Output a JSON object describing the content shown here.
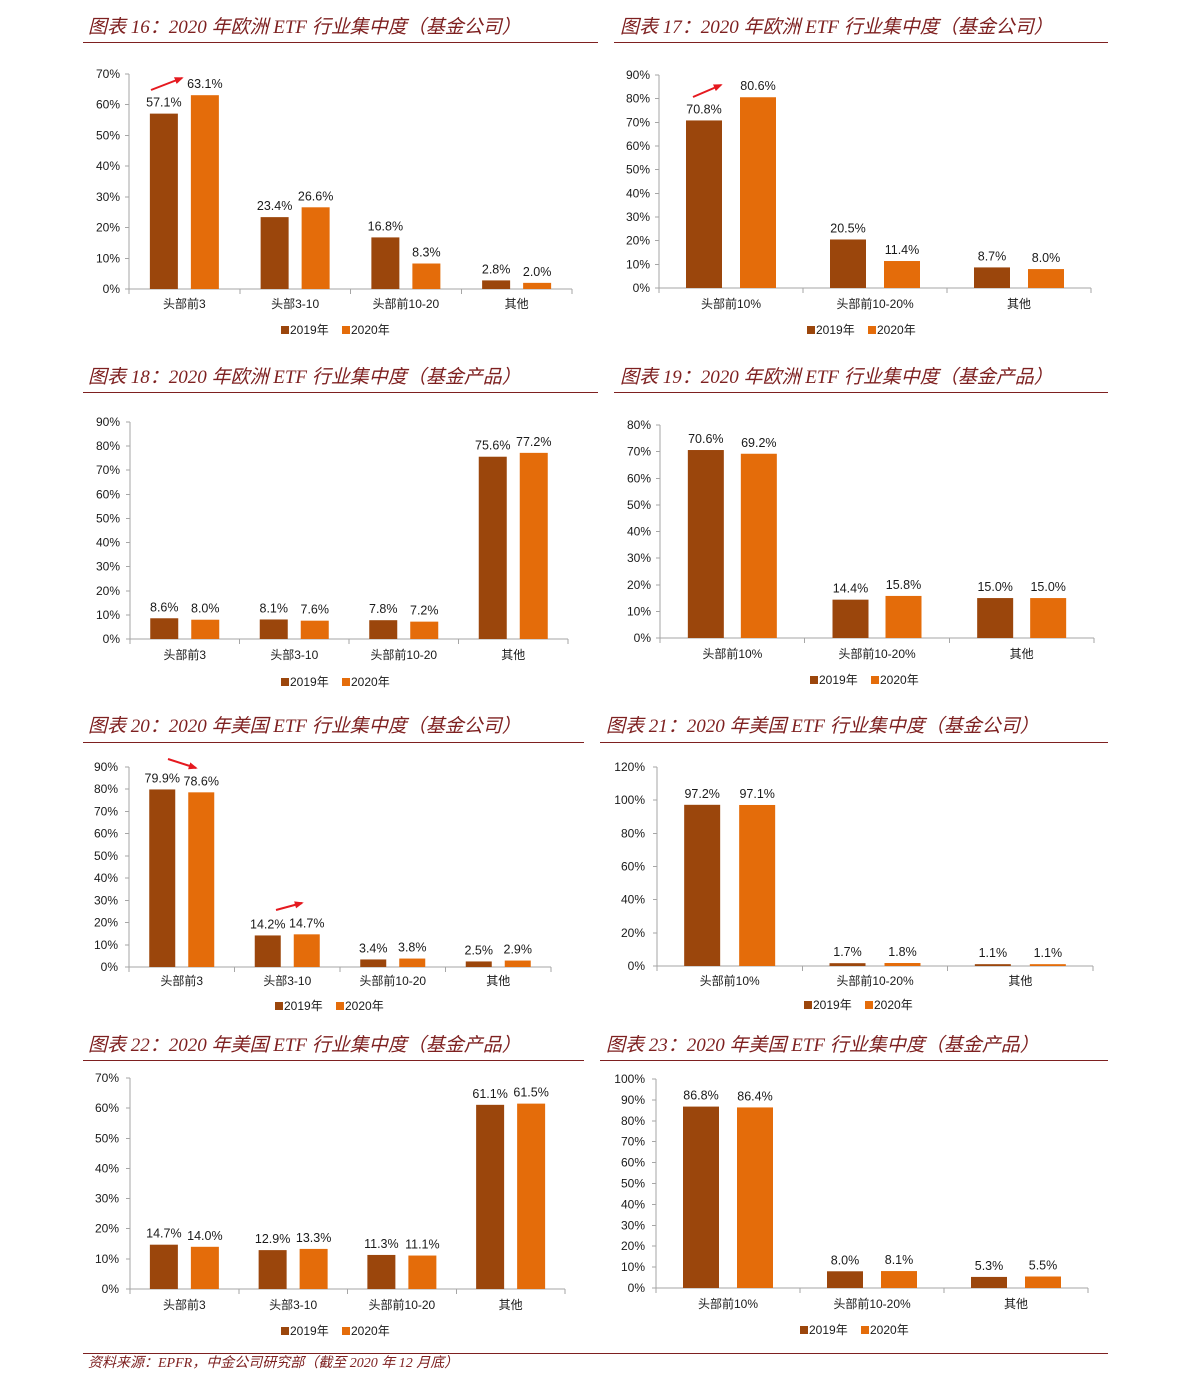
{
  "colors": {
    "heading": "#7E2020",
    "series": [
      "#9B460C",
      "#E46C0A"
    ],
    "annotation_arrow": "#E5191F"
  },
  "source_note": "资料来源：EPFR，中金公司研究部（截至 2020 年 12 月底）",
  "chart_data": [
    {
      "type": "bar",
      "title": "图表 16：2020 年欧洲 ETF 行业集中度（基金公司）",
      "categories": [
        "头部前3",
        "头部3-10",
        "头部前10-20",
        "其他"
      ],
      "series": [
        {
          "name": "2019年",
          "values": [
            57.1,
            23.4,
            16.8,
            2.8
          ]
        },
        {
          "name": "2020年",
          "values": [
            63.1,
            26.6,
            8.3,
            2.0
          ]
        }
      ],
      "unit": "%",
      "ylim": [
        0,
        70
      ],
      "ytick_step": 10,
      "grid": false,
      "legend": "bottom",
      "data_labels": true
    },
    {
      "type": "bar",
      "title": "图表 17：2020 年欧洲 ETF 行业集中度（基金公司）",
      "categories": [
        "头部前10%",
        "头部前10-20%",
        "其他"
      ],
      "series": [
        {
          "name": "2019年",
          "values": [
            70.8,
            20.5,
            8.7
          ]
        },
        {
          "name": "2020年",
          "values": [
            80.6,
            11.4,
            8.0
          ]
        }
      ],
      "unit": "%",
      "ylim": [
        0,
        90
      ],
      "ytick_step": 10,
      "grid": false,
      "legend": "bottom",
      "data_labels": true
    },
    {
      "type": "bar",
      "title": "图表 18：2020 年欧洲 ETF 行业集中度（基金产品）",
      "categories": [
        "头部前3",
        "头部3-10",
        "头部前10-20",
        "其他"
      ],
      "series": [
        {
          "name": "2019年",
          "values": [
            8.6,
            8.1,
            7.8,
            75.6
          ]
        },
        {
          "name": "2020年",
          "values": [
            8.0,
            7.6,
            7.2,
            77.2
          ]
        }
      ],
      "unit": "%",
      "ylim": [
        0,
        90
      ],
      "ytick_step": 10,
      "grid": false,
      "legend": "bottom",
      "data_labels": true
    },
    {
      "type": "bar",
      "title": "图表 19：2020 年欧洲 ETF 行业集中度（基金产品）",
      "categories": [
        "头部前10%",
        "头部前10-20%",
        "其他"
      ],
      "series": [
        {
          "name": "2019年",
          "values": [
            70.6,
            14.4,
            15.0
          ]
        },
        {
          "name": "2020年",
          "values": [
            69.2,
            15.8,
            15.0
          ]
        }
      ],
      "unit": "%",
      "ylim": [
        0,
        80
      ],
      "ytick_step": 10,
      "grid": false,
      "legend": "bottom",
      "data_labels": true
    },
    {
      "type": "bar",
      "title": "图表 20：2020 年美国 ETF 行业集中度（基金公司）",
      "categories": [
        "头部前3",
        "头部3-10",
        "头部前10-20",
        "其他"
      ],
      "series": [
        {
          "name": "2019年",
          "values": [
            79.9,
            14.2,
            3.4,
            2.5
          ]
        },
        {
          "name": "2020年",
          "values": [
            78.6,
            14.7,
            3.8,
            2.9
          ]
        }
      ],
      "unit": "%",
      "ylim": [
        0,
        90
      ],
      "ytick_step": 10,
      "grid": false,
      "legend": "bottom",
      "data_labels": true
    },
    {
      "type": "bar",
      "title": "图表 21：2020 年美国 ETF 行业集中度（基金公司）",
      "categories": [
        "头部前10%",
        "头部前10-20%",
        "其他"
      ],
      "series": [
        {
          "name": "2019年",
          "values": [
            97.2,
            1.7,
            1.1
          ]
        },
        {
          "name": "2020年",
          "values": [
            97.1,
            1.8,
            1.1
          ]
        }
      ],
      "unit": "%",
      "ylim": [
        0,
        120
      ],
      "ytick_step": 20,
      "grid": false,
      "legend": "bottom",
      "data_labels": true
    },
    {
      "type": "bar",
      "title": "图表 22：2020 年美国 ETF 行业集中度（基金产品）",
      "categories": [
        "头部前3",
        "头部3-10",
        "头部前10-20",
        "其他"
      ],
      "series": [
        {
          "name": "2019年",
          "values": [
            14.7,
            12.9,
            11.3,
            61.1
          ]
        },
        {
          "name": "2020年",
          "values": [
            14.0,
            13.3,
            11.1,
            61.5
          ]
        }
      ],
      "unit": "%",
      "ylim": [
        0,
        70
      ],
      "ytick_step": 10,
      "grid": false,
      "legend": "bottom",
      "data_labels": true
    },
    {
      "type": "bar",
      "title": "图表 23：2020 年美国 ETF 行业集中度（基金产品）",
      "categories": [
        "头部前10%",
        "头部前10-20%",
        "其他"
      ],
      "series": [
        {
          "name": "2019年",
          "values": [
            86.8,
            8.0,
            5.3
          ]
        },
        {
          "name": "2020年",
          "values": [
            86.4,
            8.1,
            5.5
          ]
        }
      ],
      "unit": "%",
      "ylim": [
        0,
        100
      ],
      "ytick_step": 10,
      "grid": false,
      "legend": "bottom",
      "data_labels": true
    }
  ]
}
